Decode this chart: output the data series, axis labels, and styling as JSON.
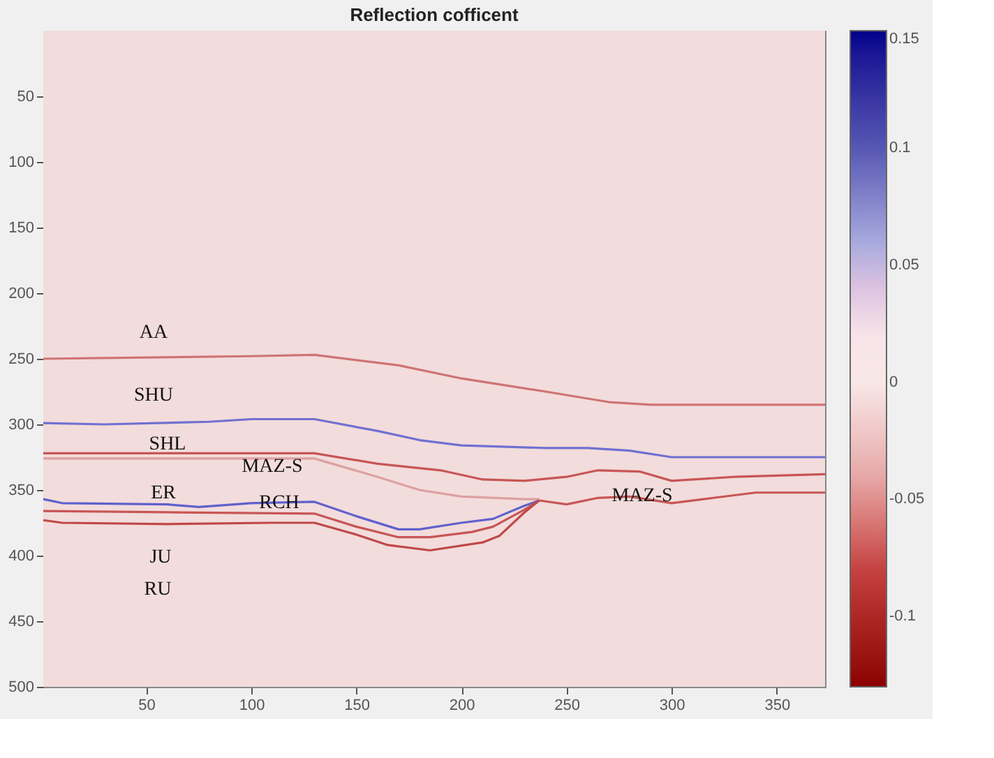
{
  "chart_data": {
    "type": "line",
    "title": "Reflection cofficent",
    "xlim": [
      1,
      373
    ],
    "xticks": [
      50,
      100,
      150,
      200,
      250,
      300,
      350
    ],
    "ylim": [
      500,
      0
    ],
    "yticks": [
      50,
      100,
      150,
      200,
      250,
      300,
      350,
      400,
      450,
      500
    ],
    "grid": false,
    "marker": "none",
    "line_style": "solid",
    "clim": [
      -0.13,
      0.15
    ],
    "cticks": [
      -0.1,
      -0.05,
      0,
      0.05,
      0.1,
      0.15
    ],
    "bands": [
      {
        "axis": "y",
        "from": 0,
        "to": 500,
        "color": "#f2dcdc"
      }
    ],
    "series": [
      {
        "color": "#cf7373",
        "x": [
          1,
          100,
          130,
          170,
          200,
          240,
          270,
          290,
          373
        ],
        "values": [
          250,
          248,
          247,
          255,
          265,
          275,
          283,
          285,
          285
        ]
      },
      {
        "color": "#7070d0",
        "x": [
          1,
          30,
          80,
          100,
          130,
          160,
          180,
          200,
          240,
          260,
          280,
          300,
          373
        ],
        "values": [
          299,
          300,
          298,
          296,
          296,
          305,
          312,
          316,
          318,
          318,
          320,
          325,
          325
        ]
      },
      {
        "color": "#c85555",
        "x": [
          1,
          130,
          160,
          190,
          210,
          230,
          250,
          265,
          285,
          300,
          330,
          373
        ],
        "values": [
          322,
          322,
          330,
          335,
          342,
          343,
          340,
          335,
          336,
          343,
          340,
          338
        ]
      },
      {
        "color": "#dea0a0",
        "x": [
          1,
          130,
          160,
          180,
          200,
          230,
          237
        ],
        "values": [
          326,
          326,
          340,
          350,
          355,
          357,
          357
        ]
      },
      {
        "color": "#6060cc",
        "x": [
          1,
          10,
          60,
          75,
          100,
          130,
          150,
          170,
          180,
          200,
          215,
          230,
          237
        ],
        "values": [
          357,
          360,
          361,
          363,
          360,
          359,
          370,
          380,
          380,
          375,
          372,
          362,
          358
        ]
      },
      {
        "color": "#c85555",
        "x": [
          1,
          60,
          130,
          150,
          170,
          185,
          205,
          215,
          230,
          237
        ],
        "values": [
          366,
          367,
          368,
          378,
          386,
          386,
          382,
          378,
          365,
          358
        ]
      },
      {
        "color": "#c04848",
        "x": [
          1,
          10,
          60,
          110,
          130,
          150,
          165,
          185,
          210,
          218,
          230,
          237
        ],
        "values": [
          373,
          375,
          376,
          375,
          375,
          384,
          392,
          396,
          390,
          385,
          367,
          358
        ]
      },
      {
        "color": "#c85555",
        "x": [
          237,
          250,
          265,
          280,
          300,
          320,
          340,
          373
        ],
        "values": [
          358,
          361,
          356,
          355,
          360,
          356,
          352,
          352
        ]
      }
    ],
    "annotations": [
      "AA",
      "SHU",
      "SHL",
      "MAZ-S",
      "ER",
      "RCH",
      "JU",
      "RU",
      "MAZ-S"
    ]
  }
}
